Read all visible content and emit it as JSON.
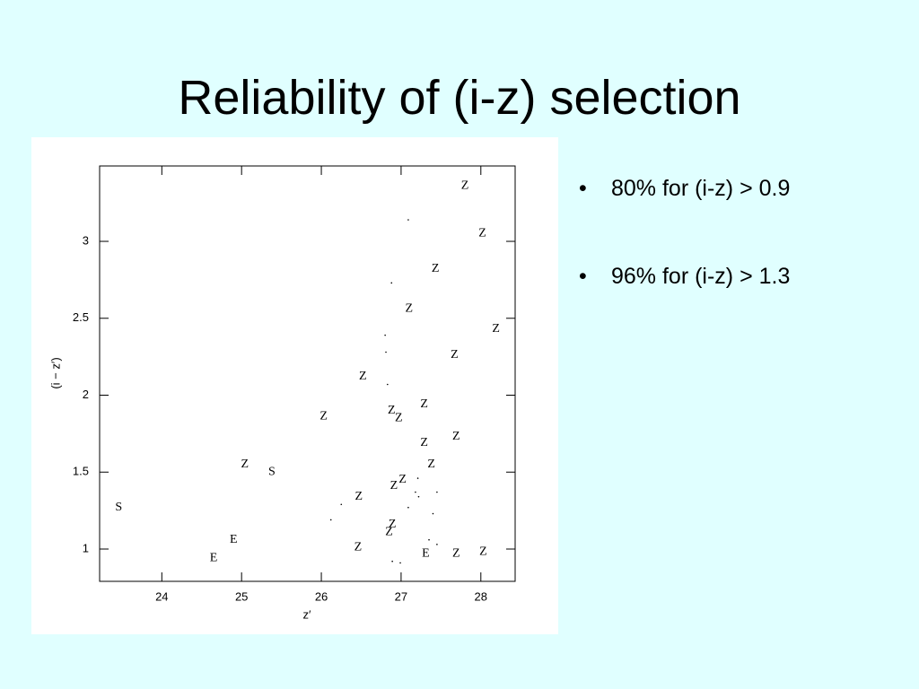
{
  "slide": {
    "title": "Reliability of (i-z) selection",
    "bullets": [
      "80% for (i-z) > 0.9",
      "96% for (i-z) > 1.3"
    ]
  },
  "chart_data": {
    "type": "scatter",
    "x_label": "z′",
    "y_label": "(i − z′)",
    "xlim": [
      23.22,
      28.43
    ],
    "ylim": [
      0.79,
      3.49
    ],
    "xticks": [
      24,
      25,
      26,
      27,
      28
    ],
    "yticks": [
      1,
      1.5,
      2,
      2.5,
      3
    ],
    "series": [
      {
        "name": "Z",
        "color": "#000000",
        "x": [
          27.8,
          28.02,
          27.43,
          27.1,
          28.19,
          27.67,
          26.52,
          26.03,
          26.88,
          26.97,
          27.29,
          27.69,
          27.29,
          27.38,
          25.04,
          27.02,
          26.91,
          26.47,
          26.89,
          26.85,
          26.46,
          27.69,
          28.03
        ],
        "values": [
          3.36,
          3.05,
          2.82,
          2.56,
          2.43,
          2.26,
          2.12,
          1.86,
          1.9,
          1.85,
          1.94,
          1.73,
          1.69,
          1.55,
          1.55,
          1.45,
          1.41,
          1.34,
          1.16,
          1.11,
          1.01,
          0.97,
          0.98
        ]
      },
      {
        "name": "S",
        "color": "#000000",
        "x": [
          23.46,
          25.38
        ],
        "values": [
          1.27,
          1.5
        ]
      },
      {
        "name": "E",
        "color": "#000000",
        "x": [
          24.9,
          24.65,
          27.31
        ],
        "values": [
          1.06,
          0.94,
          0.97
        ]
      },
      {
        "color": "#000000",
        "x": [
          27.09,
          26.88,
          26.8,
          26.81,
          26.83,
          27.21,
          27.18,
          27.22,
          27.45,
          26.25,
          27.09,
          27.4,
          26.12,
          27.35,
          27.45,
          26.89,
          26.99
        ],
        "values": [
          3.14,
          2.73,
          2.39,
          2.28,
          2.07,
          1.46,
          1.37,
          1.34,
          1.37,
          1.29,
          1.27,
          1.23,
          1.19,
          1.06,
          1.03,
          0.92,
          0.91
        ]
      }
    ]
  }
}
